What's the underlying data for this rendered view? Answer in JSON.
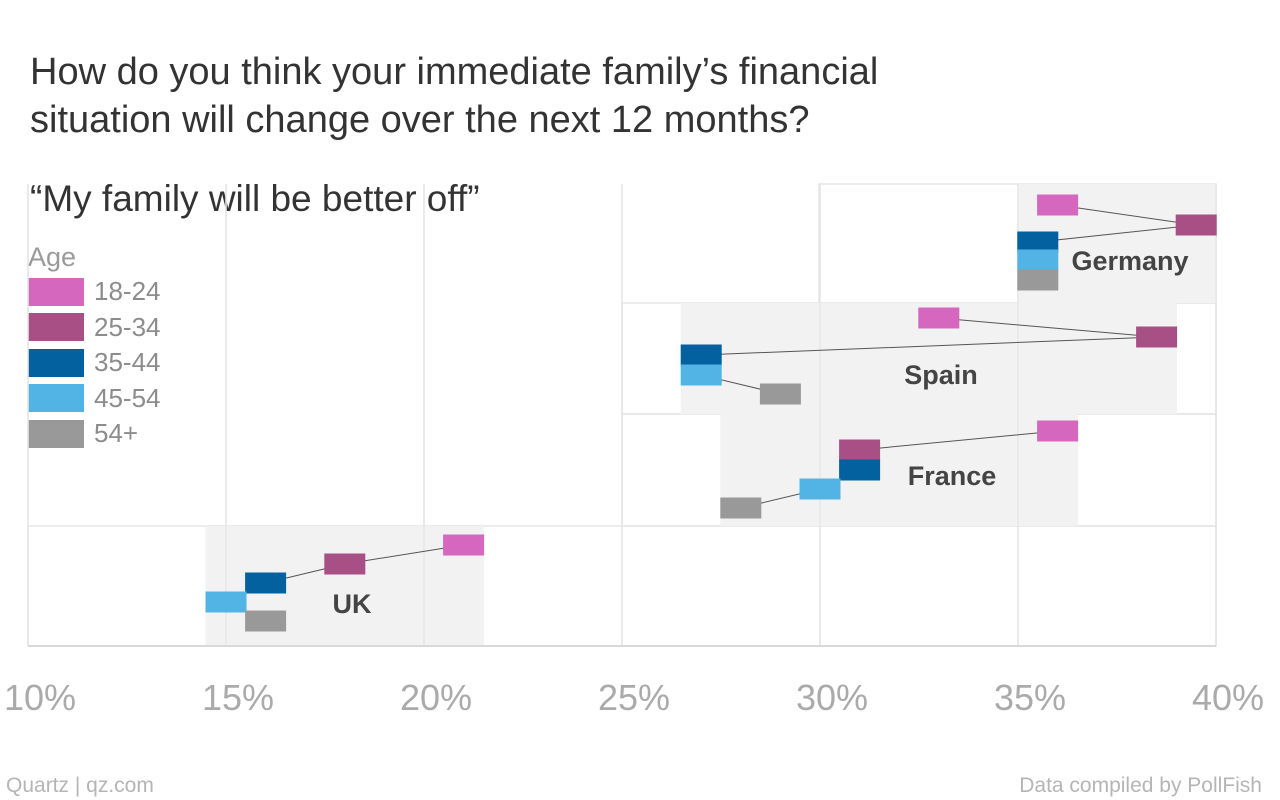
{
  "header": {
    "title": "How do you think your immediate family’s financial situation will change over the next 12 months?",
    "subtitle": "“My family will be better off”"
  },
  "legend": {
    "title": "Age",
    "items": [
      {
        "label": "18-24",
        "color": "#d667bf"
      },
      {
        "label": "25-34",
        "color": "#a84f86"
      },
      {
        "label": "35-44",
        "color": "#02619e"
      },
      {
        "label": "45-54",
        "color": "#52b4e4"
      },
      {
        "label": "54+",
        "color": "#999999"
      }
    ]
  },
  "footer": {
    "left": "Quartz | qz.com",
    "right": "Data compiled by PollFish"
  },
  "chart_data": {
    "type": "scatter",
    "xlabel": "",
    "ylabel": "",
    "xlim": [
      10,
      40
    ],
    "x_ticks": [
      "10%",
      "15%",
      "20%",
      "25%",
      "30%",
      "35%",
      "40%"
    ],
    "grid": true,
    "categories": [
      "Germany",
      "Spain",
      "France",
      "UK"
    ],
    "series_order": [
      "18-24",
      "25-34",
      "35-44",
      "45-54",
      "54+"
    ],
    "countries": [
      {
        "name": "Germany",
        "values": {
          "18-24": 36.0,
          "25-34": 39.5,
          "35-44": 35.5,
          "45-54": 35.5,
          "54+": 35.5
        }
      },
      {
        "name": "Spain",
        "values": {
          "18-24": 33.0,
          "25-34": 38.5,
          "35-44": 27.0,
          "45-54": 27.0,
          "54+": 29.0
        }
      },
      {
        "name": "France",
        "values": {
          "18-24": 36.0,
          "25-34": 31.0,
          "35-44": 31.0,
          "45-54": 30.0,
          "54+": 28.0
        }
      },
      {
        "name": "UK",
        "values": {
          "18-24": 21.0,
          "25-34": 18.0,
          "35-44": 16.0,
          "45-54": 15.0,
          "54+": 16.0
        }
      }
    ]
  }
}
